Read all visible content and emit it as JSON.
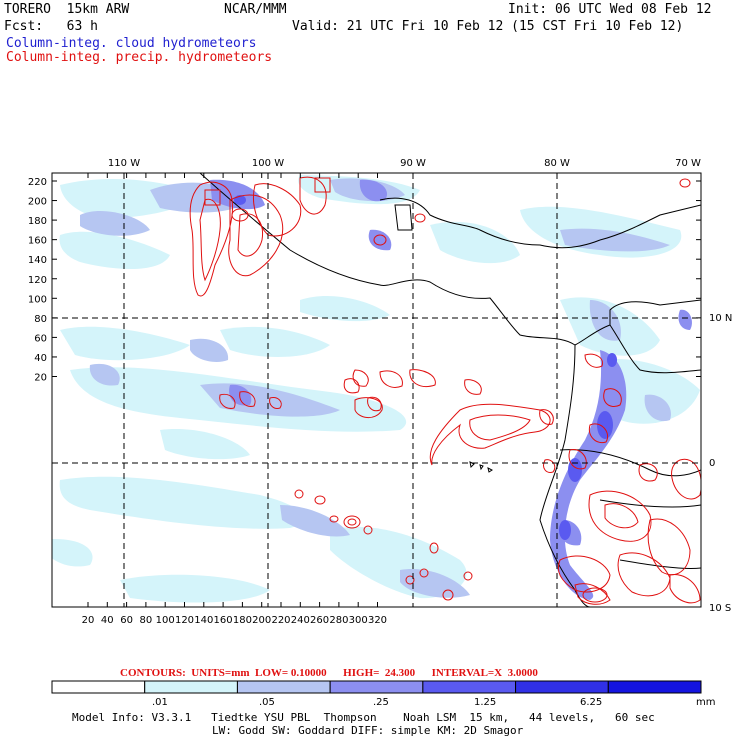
{
  "header": {
    "model": "TORERO  15km ARW",
    "center": "NCAR/MMM",
    "init": "Init: 06 UTC Wed 08 Feb 12",
    "fcst": "Fcst:   63 h",
    "valid": "Valid: 21 UTC Fri 10 Feb 12 (15 CST Fri 10 Feb 12)",
    "field_cloud": "Column-integ. cloud hydrometeors",
    "field_precip": "Column-integ. precip. hydrometeors"
  },
  "axes": {
    "top_lon_labels": [
      "110 W",
      "100 W",
      "90 W",
      "80 W",
      "70 W"
    ],
    "right_lat_labels": [
      "10 N",
      "0",
      "10 S"
    ],
    "left_y_ticks": [
      "220",
      "200",
      "180",
      "160",
      "140",
      "120",
      "100",
      "80",
      "60",
      "40",
      "20"
    ],
    "bottom_x_ticks": [
      "20",
      "40",
      "60",
      "80",
      "100",
      "120",
      "140",
      "160",
      "180",
      "200",
      "220",
      "240",
      "260",
      "280",
      "300",
      "320"
    ]
  },
  "contours": {
    "line": "CONTOURS:  UNITS=mm  LOW= 0.10000      HIGH=  24.300      INTERVAL=X  3.0000"
  },
  "colorbar": {
    "labels": [
      ".01",
      ".05",
      ".25",
      "1.25",
      "6.25"
    ],
    "units": "mm",
    "colors": [
      "#ffffff",
      "#d4f4fa",
      "#b6c6f2",
      "#8c8ff0",
      "#5a5af0",
      "#3030e6",
      "#1414e0"
    ]
  },
  "footer": {
    "line1": "Model Info: V3.3.1   Tiedtke YSU PBL  Thompson    Noah LSM  15 km,   44 levels,   60 sec",
    "line2": "LW: Godd SW: Goddard DIFF: simple KM: 2D Smagor"
  },
  "colors": {
    "cloud_light": "#d4f4fa",
    "cloud_mid": "#b6c6f2",
    "cloud_dark": "#8c8ff0",
    "cloud_deep": "#5a5af0",
    "precip": "#e01010",
    "title_blue": "#1f1fd0"
  }
}
